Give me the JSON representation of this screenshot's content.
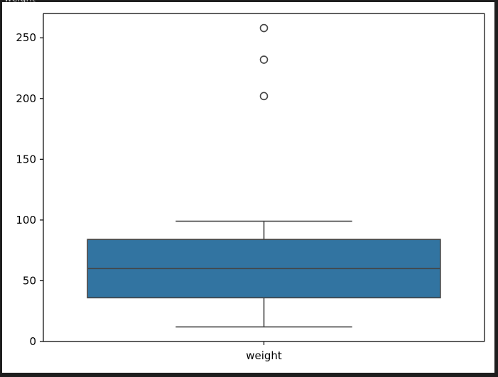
{
  "header": {
    "clipped_text": "weight"
  },
  "colors": {
    "page_background": "#1e1e1e",
    "figure_background": "#ffffff",
    "box_fill": "#3274a1",
    "line": "#444444",
    "axis": "#000000"
  },
  "chart_data": {
    "type": "box",
    "categories": [
      "weight"
    ],
    "yticks": [
      0,
      50,
      100,
      150,
      200,
      250
    ],
    "ylim": [
      0,
      270
    ],
    "grid": false,
    "legend": "none",
    "boxes": [
      {
        "category": "weight",
        "whisker_low": 12,
        "q1": 36,
        "median": 60,
        "q3": 84,
        "whisker_high": 99,
        "outliers": [
          202,
          232,
          258
        ]
      }
    ]
  }
}
